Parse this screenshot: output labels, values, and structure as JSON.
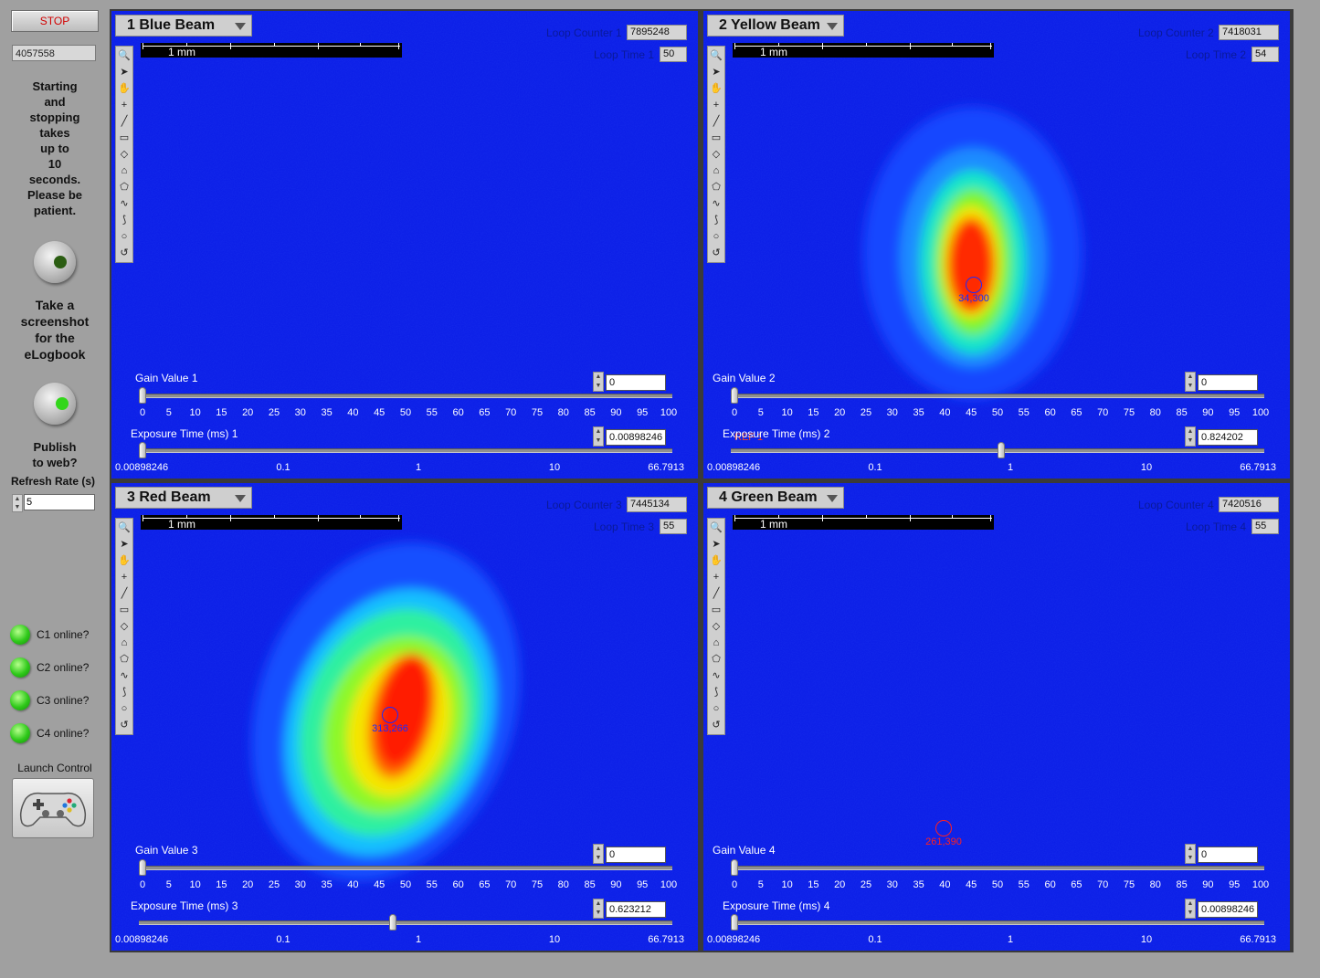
{
  "controls": {
    "stop_label": "STOP",
    "counter_value": "4057558",
    "info_lines": [
      "Starting",
      "and",
      "stopping",
      "takes",
      "up to",
      "10",
      "seconds.",
      "Please be",
      "patient."
    ],
    "screenshot_lines": [
      "Take a",
      "screenshot",
      "for the",
      "eLogbook"
    ],
    "publish_lines": [
      "Publish",
      "to web?"
    ],
    "refresh_label": "Refresh Rate (s)",
    "refresh_value": "5",
    "status": [
      "C1 online?",
      "C2 online?",
      "C3 online?",
      "C4 online?"
    ],
    "launch_label": "Launch Control",
    "screenshot_icon": "round-push-button",
    "publish_icon": "round-toggle-button",
    "launch_icon": "gamepad-icon"
  },
  "gain_scale": [
    "0",
    "5",
    "10",
    "15",
    "20",
    "25",
    "30",
    "35",
    "40",
    "45",
    "50",
    "55",
    "60",
    "65",
    "70",
    "75",
    "80",
    "85",
    "90",
    "95",
    "100"
  ],
  "exposure_scale": [
    "0.00898246",
    "0.1",
    "1",
    "10",
    "66.7913"
  ],
  "scalebar_label": "1 mm",
  "cameras": [
    {
      "title": "1 Blue Beam",
      "loop_counter_label": "Loop Counter 1",
      "loop_counter": "7895248",
      "loop_time_label": "Loop Time 1",
      "loop_time": "50",
      "gain_label": "Gain Value 1",
      "gain_value": "0",
      "exposure_label": "Exposure Time (ms) 1",
      "exposure_value": "0.00898246",
      "gain_level": 0,
      "exposure_level_ms": 0.00898246,
      "marker": null,
      "selected": true
    },
    {
      "title": "2 Yellow Beam",
      "loop_counter_label": "Loop Counter 2",
      "loop_counter": "7418031",
      "loop_time_label": "Loop Time 2",
      "loop_time": "54",
      "gain_label": "Gain Value 2",
      "gain_value": "0",
      "exposure_label": "Exposure Time (ms) 2",
      "exposure_value": "0.824202",
      "gain_level": 0,
      "exposure_level_ms": 0.824202,
      "marker": "34,300",
      "marker_color": "#1a2cff",
      "extra_label": "REF 1",
      "selected": false
    },
    {
      "title": "3 Red Beam",
      "loop_counter_label": "Loop Counter 3",
      "loop_counter": "7445134",
      "loop_time_label": "Loop Time 3",
      "loop_time": "55",
      "gain_label": "Gain Value 3",
      "gain_value": "0",
      "exposure_label": "Exposure Time (ms) 3",
      "exposure_value": "0.623212",
      "gain_level": 0,
      "exposure_level_ms": 0.623212,
      "marker": "313,266",
      "marker_color": "#1a2cff",
      "selected": false
    },
    {
      "title": "4 Green Beam",
      "loop_counter_label": "Loop Counter 4",
      "loop_counter": "7420516",
      "loop_time_label": "Loop Time 4",
      "loop_time": "55",
      "gain_label": "Gain Value 4",
      "gain_value": "0",
      "exposure_label": "Exposure Time (ms) 4",
      "exposure_value": "0.00898246",
      "gain_level": 0,
      "exposure_level_ms": 0.00898246,
      "marker": "261,390",
      "marker_color": "#ff2020",
      "selected": false
    }
  ],
  "tool_icons": [
    "zoom-icon",
    "pointer-icon",
    "pan-icon",
    "crosshair-icon",
    "line-icon",
    "rectangle-icon",
    "rotated-rect-icon",
    "annulus-icon",
    "polygon-icon",
    "freehand-icon",
    "broken-line-icon",
    "oval-icon",
    "rotation-icon"
  ]
}
